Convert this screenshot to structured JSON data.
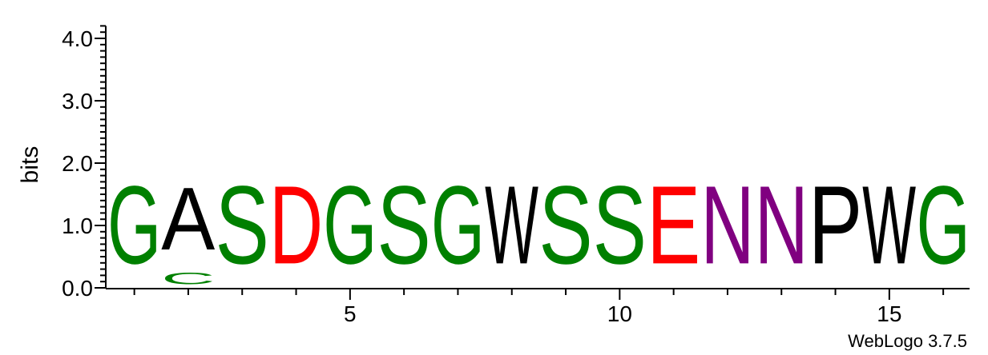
{
  "chart_data": {
    "type": "sequence-logo",
    "ylabel": "bits",
    "ylim": [
      0,
      4.2
    ],
    "y_ticks": [
      "0.0",
      "1.0",
      "2.0",
      "3.0",
      "4.0"
    ],
    "x_ticks": [
      "5",
      "10",
      "15"
    ],
    "credit": "WebLogo 3.7.5",
    "color_legend": {
      "G": "#008000",
      "S": "#008000",
      "C": "#008000",
      "A": "#000000",
      "W": "#000000",
      "P": "#000000",
      "D": "#ff0000",
      "E": "#ff0000",
      "N": "#800080"
    },
    "positions": [
      {
        "pos": 1,
        "stack": [
          {
            "letter": "G",
            "bits": 2.0
          }
        ]
      },
      {
        "pos": 2,
        "stack": [
          {
            "letter": "C",
            "bits": 0.3
          },
          {
            "letter": "A",
            "bits": 1.6
          }
        ]
      },
      {
        "pos": 3,
        "stack": [
          {
            "letter": "S",
            "bits": 2.0
          }
        ]
      },
      {
        "pos": 4,
        "stack": [
          {
            "letter": "D",
            "bits": 2.0
          }
        ]
      },
      {
        "pos": 5,
        "stack": [
          {
            "letter": "G",
            "bits": 2.0
          }
        ]
      },
      {
        "pos": 6,
        "stack": [
          {
            "letter": "S",
            "bits": 2.0
          }
        ]
      },
      {
        "pos": 7,
        "stack": [
          {
            "letter": "G",
            "bits": 2.0
          }
        ]
      },
      {
        "pos": 8,
        "stack": [
          {
            "letter": "W",
            "bits": 2.0
          }
        ]
      },
      {
        "pos": 9,
        "stack": [
          {
            "letter": "S",
            "bits": 2.0
          }
        ]
      },
      {
        "pos": 10,
        "stack": [
          {
            "letter": "S",
            "bits": 2.0
          }
        ]
      },
      {
        "pos": 11,
        "stack": [
          {
            "letter": "E",
            "bits": 2.0
          }
        ]
      },
      {
        "pos": 12,
        "stack": [
          {
            "letter": "N",
            "bits": 2.0
          }
        ]
      },
      {
        "pos": 13,
        "stack": [
          {
            "letter": "N",
            "bits": 2.0
          }
        ]
      },
      {
        "pos": 14,
        "stack": [
          {
            "letter": "P",
            "bits": 2.0
          }
        ]
      },
      {
        "pos": 15,
        "stack": [
          {
            "letter": "W",
            "bits": 2.0
          }
        ]
      },
      {
        "pos": 16,
        "stack": [
          {
            "letter": "G",
            "bits": 2.0
          }
        ]
      }
    ]
  }
}
